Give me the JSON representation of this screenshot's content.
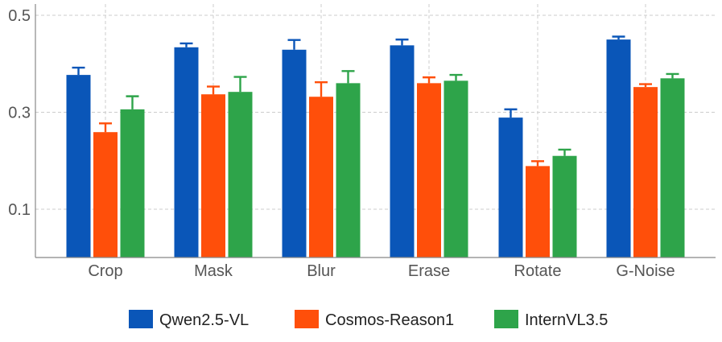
{
  "chart_data": {
    "type": "bar",
    "title": "",
    "xlabel": "",
    "ylabel": "",
    "ylim": [
      0.0,
      0.5
    ],
    "yticks": [
      "0.1",
      "0.3",
      "0.5"
    ],
    "grid": true,
    "legend_position": "bottom-center",
    "categories": [
      "Crop",
      "Mask",
      "Blur",
      "Erase",
      "Rotate",
      "G-Noise"
    ],
    "series": [
      {
        "name": "Qwen2.5-VL",
        "color": "#0a56b8",
        "values": [
          0.377,
          0.434,
          0.429,
          0.438,
          0.289,
          0.45
        ],
        "errors": [
          0.015,
          0.008,
          0.02,
          0.012,
          0.017,
          0.006
        ]
      },
      {
        "name": "Cosmos-Reason1",
        "color": "#ff4f0a",
        "values": [
          0.259,
          0.337,
          0.332,
          0.36,
          0.189,
          0.352
        ],
        "errors": [
          0.018,
          0.016,
          0.03,
          0.012,
          0.01,
          0.006
        ]
      },
      {
        "name": "InternVL3.5",
        "color": "#2ea44a",
        "values": [
          0.306,
          0.342,
          0.36,
          0.365,
          0.21,
          0.37
        ],
        "errors": [
          0.027,
          0.031,
          0.025,
          0.012,
          0.013,
          0.009
        ]
      }
    ]
  }
}
